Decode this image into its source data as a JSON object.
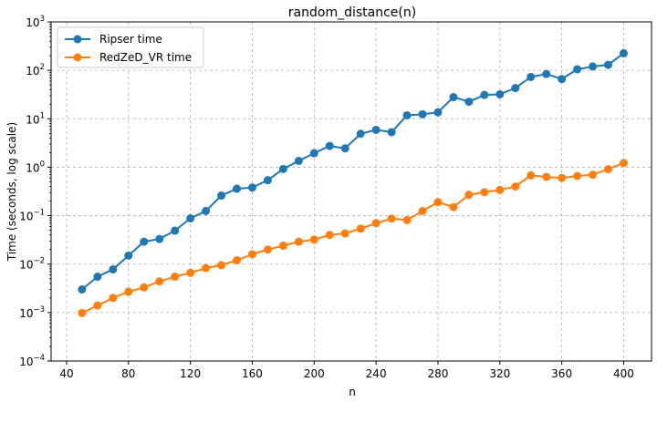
{
  "chart_data": {
    "type": "line",
    "title": "random_distance(n)",
    "xlabel": "n",
    "ylabel": "Time (seconds, log scale)",
    "yscale": "log",
    "xlim": [
      30,
      418
    ],
    "ylim": [
      0.0001,
      1000
    ],
    "grid": true,
    "legend_position": "top-left",
    "x_ticks": [
      40,
      80,
      120,
      160,
      200,
      240,
      280,
      320,
      360,
      400
    ],
    "x_tick_labels": [
      "40",
      "80",
      "120",
      "160",
      "200",
      "240",
      "280",
      "320",
      "360",
      "400"
    ],
    "y_ticks": [
      0.0001,
      0.001,
      0.01,
      0.1,
      1,
      10,
      100,
      1000
    ],
    "y_tick_labels": [
      {
        "base": "10",
        "exp": "−4"
      },
      {
        "base": "10",
        "exp": "−3"
      },
      {
        "base": "10",
        "exp": "−2"
      },
      {
        "base": "10",
        "exp": "−1"
      },
      {
        "base": "10",
        "exp": "0"
      },
      {
        "base": "10",
        "exp": "1"
      },
      {
        "base": "10",
        "exp": "2"
      },
      {
        "base": "10",
        "exp": "3"
      }
    ],
    "x": [
      50,
      60,
      70,
      80,
      90,
      100,
      110,
      120,
      130,
      140,
      150,
      160,
      170,
      180,
      190,
      200,
      210,
      220,
      230,
      240,
      250,
      260,
      270,
      280,
      290,
      300,
      310,
      320,
      330,
      340,
      350,
      360,
      370,
      380,
      390,
      400
    ],
    "series": [
      {
        "name": "Ripser time",
        "color": "#1f77b4",
        "values": [
          0.003,
          0.0055,
          0.0078,
          0.015,
          0.029,
          0.033,
          0.049,
          0.088,
          0.125,
          0.26,
          0.36,
          0.38,
          0.54,
          0.92,
          1.35,
          1.95,
          2.75,
          2.45,
          4.9,
          5.9,
          5.3,
          11.8,
          12.4,
          13.6,
          28,
          22.5,
          31,
          32,
          43,
          73,
          84,
          66,
          105,
          120,
          130,
          225
        ]
      },
      {
        "name": "RedZeD_VR time",
        "color": "#ff7f0e",
        "values": [
          0.00098,
          0.0014,
          0.002,
          0.0027,
          0.0033,
          0.0044,
          0.0055,
          0.0066,
          0.0083,
          0.0095,
          0.012,
          0.016,
          0.02,
          0.024,
          0.029,
          0.032,
          0.04,
          0.043,
          0.054,
          0.07,
          0.087,
          0.081,
          0.125,
          0.19,
          0.15,
          0.27,
          0.305,
          0.34,
          0.4,
          0.68,
          0.63,
          0.6,
          0.66,
          0.7,
          0.91,
          1.22
        ]
      }
    ]
  }
}
